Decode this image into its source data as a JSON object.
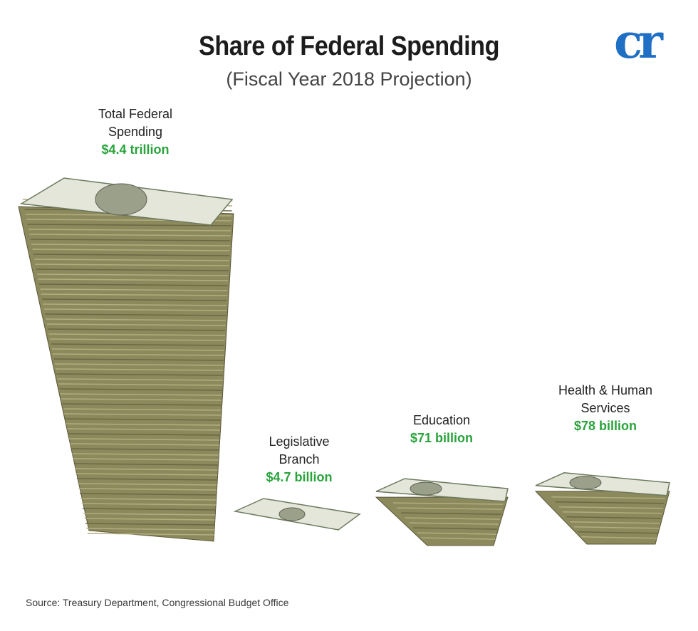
{
  "chart_data": {
    "type": "bar",
    "title": "Share of Federal Spending",
    "subtitle": "(Fiscal Year 2018 Projection)",
    "categories": [
      "Total Federal\nSpending",
      "Legislative\nBranch",
      "Education",
      "Health & Human\nServices"
    ],
    "value_labels": [
      "$4.4 trillion",
      "$4.7 billion",
      "$71 billion",
      "$78 billion"
    ],
    "values": [
      4400,
      4.7,
      71,
      78
    ],
    "unit": "billion USD",
    "colors": {
      "value_text": "#29a33b",
      "bill_green": "#8c8a5c",
      "bill_edge": "#5a5638",
      "bill_top": "#e4e6da"
    }
  },
  "logo": {
    "text": "cr",
    "color": "#1f6fc4"
  },
  "source": "Source: Treasury Department, Congressional Budget Office"
}
